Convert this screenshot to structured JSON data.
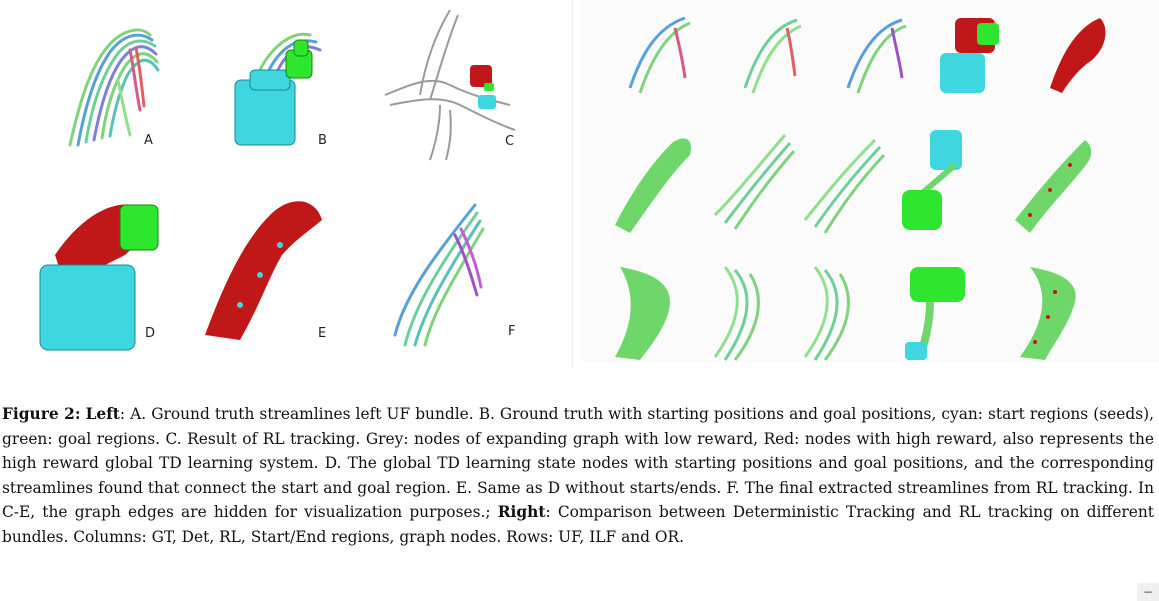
{
  "figure": {
    "left_labels": [
      "A",
      "B",
      "C",
      "D",
      "E",
      "F"
    ],
    "colors": {
      "streamline_green": "#6fd66a",
      "streamline_blue": "#5b8fd6",
      "streamline_purple": "#a04fc8",
      "start_region_cyan": "#3ed7e0",
      "goal_region_green": "#2ee62e",
      "high_reward_red": "#c01818",
      "low_reward_grey": "#9a9a9a"
    }
  },
  "caption": {
    "figure_number": "Figure 2:",
    "left_heading": "Left",
    "left_text": ": A. Ground truth streamlines left UF bundle. B. Ground truth with starting positions and goal positions, cyan: start regions (seeds), green: goal regions. C. Result of RL tracking. Grey: nodes of expanding graph with low reward, Red: nodes with high reward, also represents the high reward global TD learning system. D. The global TD learning state nodes with starting positions and goal positions, and the corresponding streamlines found that connect the start and goal region. E. Same as D without starts/ends. F. The final extracted streamlines from RL tracking. In C-E, the graph edges are hidden for visualization purposes.;",
    "right_heading": "Right",
    "right_text": ": Comparison between Deterministic Tracking and RL tracking on different bundles. Columns: GT, Det, RL, Start/End regions, graph nodes. Rows: UF, ILF and OR."
  },
  "ui": {
    "scroll_button": "−"
  }
}
